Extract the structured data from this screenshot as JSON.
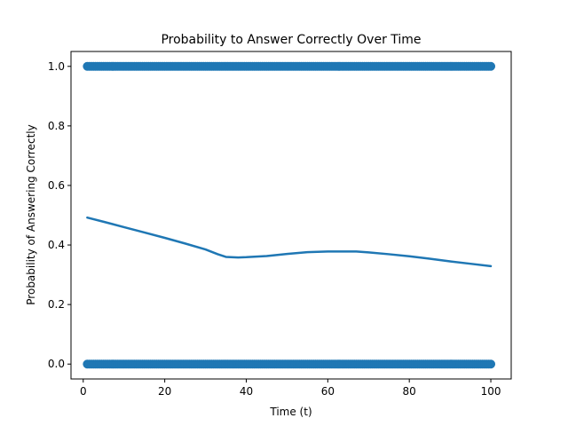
{
  "chart_data": {
    "type": "scatter",
    "title": "Probability to Answer Correctly Over Time",
    "xlabel": "Time (t)",
    "ylabel": "Probability of Answering Correctly",
    "xlim": [
      -3,
      105
    ],
    "ylim": [
      -0.05,
      1.05
    ],
    "xticks": [
      0,
      20,
      40,
      60,
      80,
      100
    ],
    "yticks": [
      0.0,
      0.2,
      0.4,
      0.6,
      0.8,
      1.0
    ],
    "grid": false,
    "legend": "none",
    "colors": {
      "series": "#1f77b4"
    },
    "series": [
      {
        "kind": "scatter",
        "x_start": 1,
        "x_end": 100,
        "x_step": 0.5,
        "y_values": [
          0,
          1
        ]
      },
      {
        "kind": "line",
        "x": [
          1,
          5,
          10,
          15,
          20,
          25,
          30,
          33,
          35,
          38,
          40,
          45,
          50,
          55,
          60,
          65,
          67,
          70,
          75,
          80,
          85,
          90,
          95,
          100
        ],
        "y": [
          0.492,
          0.478,
          0.46,
          0.442,
          0.424,
          0.405,
          0.385,
          0.369,
          0.36,
          0.358,
          0.359,
          0.363,
          0.37,
          0.376,
          0.378,
          0.378,
          0.378,
          0.375,
          0.369,
          0.362,
          0.354,
          0.345,
          0.337,
          0.329
        ]
      }
    ]
  }
}
